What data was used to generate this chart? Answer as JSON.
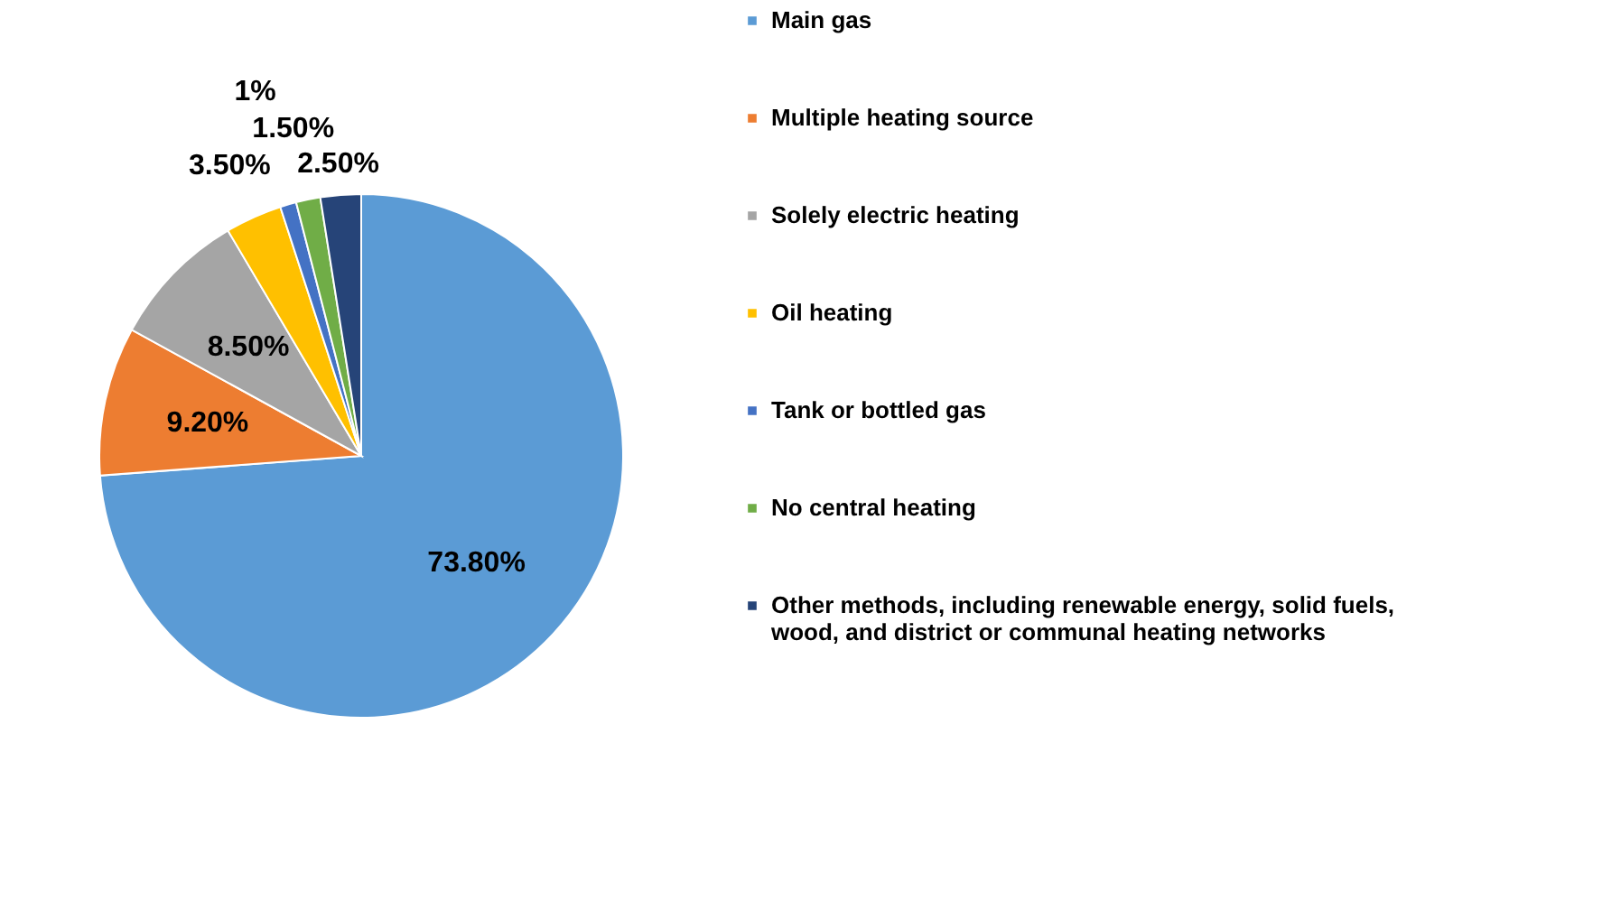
{
  "chart_data": {
    "type": "pie",
    "categories": [
      "Main gas",
      "Multiple heating source",
      "Solely electric heating",
      "Oil heating",
      "Tank or bottled gas",
      "No central heating",
      "Other methods, including renewable energy, solid fuels, wood, and district or communal heating networks"
    ],
    "values": [
      73.8,
      9.2,
      8.5,
      3.5,
      1,
      1.5,
      2.5
    ],
    "value_labels": [
      "73.80%",
      "9.20%",
      "8.50%",
      "3.50%",
      "1%",
      "1.50%",
      "2.50%"
    ],
    "colors": [
      "#5b9bd5",
      "#ed7d31",
      "#a5a5a5",
      "#ffc000",
      "#4472c4",
      "#70ad47",
      "#264478"
    ],
    "legend": "right"
  }
}
